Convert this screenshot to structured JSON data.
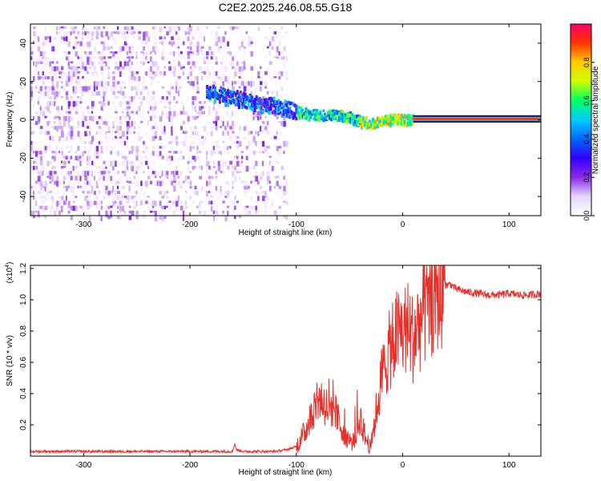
{
  "figure_title": "C2E2.2025.246.08.55.G18",
  "colors": {
    "snr_line": "#e8302a",
    "frame": "#000000",
    "colormap": [
      "#ffffff",
      "#e6d6ff",
      "#8a2be2",
      "#3300ff",
      "#0066ff",
      "#00ccff",
      "#00ff66",
      "#ccff00",
      "#ffcc00",
      "#ff3300",
      "#ff0066"
    ]
  },
  "chart_data": [
    {
      "type": "heatmap",
      "xlabel": "Height of straight line (km)",
      "ylabel": "Frequency (Hz)",
      "xlim": [
        -350,
        130
      ],
      "ylim": [
        -50,
        50
      ],
      "x_ticks": [
        -300,
        -200,
        -100,
        0,
        100
      ],
      "y_ticks": [
        -40,
        -20,
        0,
        20,
        40
      ],
      "colorbar": {
        "label": "Normalized spectral amplitude",
        "range": [
          0,
          1
        ],
        "ticks": [
          "0.0",
          "0.2",
          "0.4",
          "0.6",
          "0.8"
        ],
        "tick_values": [
          0.0,
          0.2,
          0.4,
          0.6,
          0.8
        ]
      },
      "ridge": {
        "x": [
          -180,
          -160,
          -140,
          -120,
          -100,
          -80,
          -60,
          -50,
          -40,
          -30,
          -20,
          -10,
          0,
          10,
          130
        ],
        "y": [
          15,
          12,
          10,
          8,
          5,
          3,
          3,
          2,
          0,
          -1,
          0,
          1,
          1,
          0.5,
          0.5
        ]
      },
      "noise_region_x": [
        -350,
        -110
      ],
      "strong_band_x": [
        10,
        130
      ]
    },
    {
      "type": "line",
      "xlabel": "Height of straight line (km)",
      "ylabel": "SNR (10 * v/v)",
      "y_multiplier": "(x10",
      "y_multiplier_exp": "4",
      "y_multiplier_close": ")",
      "xlim": [
        -350,
        130
      ],
      "ylim": [
        0,
        1.22
      ],
      "x_ticks": [
        -300,
        -200,
        -100,
        0,
        100
      ],
      "y_ticks": [
        "0.2",
        "0.4",
        "0.6",
        "0.8",
        "1.0",
        "1.2"
      ],
      "y_tick_values": [
        0.2,
        0.4,
        0.6,
        0.8,
        1.0,
        1.2
      ],
      "series": [
        {
          "x": [
            -350,
            -300,
            -250,
            -200,
            -160,
            -158,
            -156,
            -150,
            -120,
            -110,
            -100,
            -95,
            -90,
            -85,
            -80,
            -75,
            -70,
            -65,
            -60,
            -55,
            -50,
            -45,
            -40,
            -35,
            -30,
            -25,
            -20,
            -15,
            -10,
            -5,
            0,
            5,
            10,
            15,
            20,
            25,
            30,
            35,
            40,
            45,
            50,
            60,
            70,
            80,
            90,
            100,
            110,
            120,
            130
          ],
          "y": [
            0.03,
            0.03,
            0.03,
            0.03,
            0.03,
            0.08,
            0.04,
            0.03,
            0.03,
            0.04,
            0.06,
            0.12,
            0.18,
            0.28,
            0.38,
            0.35,
            0.3,
            0.32,
            0.22,
            0.15,
            0.1,
            0.08,
            0.25,
            0.12,
            0.05,
            0.28,
            0.5,
            0.62,
            0.72,
            0.78,
            0.8,
            0.82,
            0.75,
            0.85,
            0.9,
            0.97,
            1.03,
            1.07,
            1.09,
            1.1,
            1.07,
            1.05,
            1.04,
            1.03,
            1.03,
            1.04,
            1.03,
            1.03,
            1.04
          ]
        }
      ]
    }
  ]
}
